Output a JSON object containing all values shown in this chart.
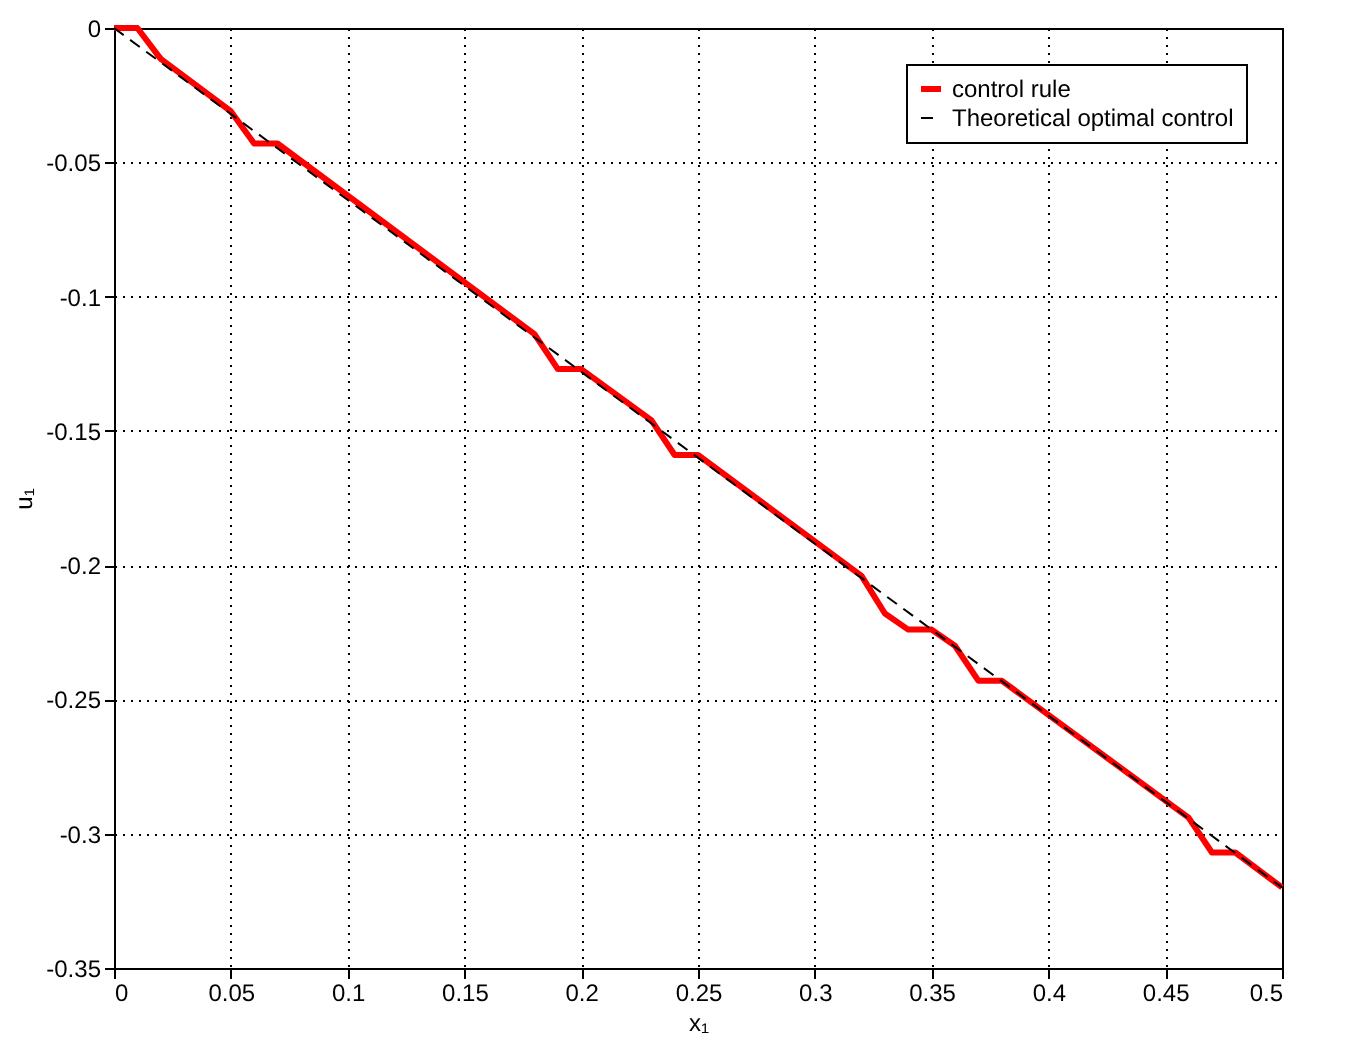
{
  "chart_data": {
    "type": "line",
    "xlabel": "x₁",
    "ylabel": "u₁",
    "series": [
      {
        "name": "control rule",
        "color": "#ff0000",
        "line_style": "solid",
        "x": [
          0,
          0.01,
          0.02,
          0.05,
          0.06,
          0.07,
          0.18,
          0.19,
          0.2,
          0.23,
          0.24,
          0.25,
          0.32,
          0.33,
          0.34,
          0.35,
          0.36,
          0.37,
          0.38,
          0.46,
          0.47,
          0.48,
          0.5
        ],
        "values": [
          0,
          0,
          -0.0115,
          -0.031,
          -0.043,
          -0.043,
          -0.114,
          -0.127,
          -0.127,
          -0.146,
          -0.159,
          -0.159,
          -0.204,
          -0.218,
          -0.224,
          -0.224,
          -0.23,
          -0.243,
          -0.243,
          -0.294,
          -0.307,
          -0.307,
          -0.32
        ]
      },
      {
        "name": "Theoretical optimal control",
        "color": "#000000",
        "line_style": "dashed",
        "x": [
          0,
          0.5
        ],
        "values": [
          0,
          -0.32
        ]
      }
    ],
    "xlim": [
      0,
      0.5
    ],
    "ylim": [
      -0.35,
      0
    ],
    "xticks": [
      0,
      0.05,
      0.1,
      0.15,
      0.2,
      0.25,
      0.3,
      0.35,
      0.4,
      0.45,
      0.5
    ],
    "yticks": [
      -0.35,
      -0.3,
      -0.25,
      -0.2,
      -0.15,
      -0.1,
      -0.05,
      0
    ],
    "grid": true,
    "legend": "top right",
    "marker": "none"
  }
}
